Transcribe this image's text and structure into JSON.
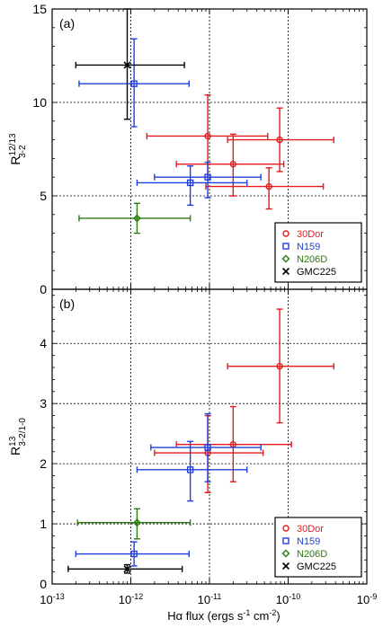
{
  "figure": {
    "xlabel": "Hα flux (ergs s",
    "xlabel_sup1": "-1",
    "xlabel_mid": " cm",
    "xlabel_sup2": "-2",
    "xlabel_end": ")"
  },
  "chart_data": [
    {
      "panel": "(a)",
      "type": "scatter",
      "xscale": "log",
      "xlim": [
        1e-13,
        1e-09
      ],
      "ylim": [
        0,
        15
      ],
      "grid": true,
      "ylabel": "R",
      "ylabel_sup": "12/13",
      "ylabel_sub": "3-2",
      "xticks": [
        "10",
        "10",
        "10",
        "10",
        "10"
      ],
      "xtick_exps": [
        "-13",
        "-12",
        "-11",
        "-10",
        "-9"
      ],
      "yticks": [
        0,
        5,
        10,
        15
      ],
      "legend_position": "bottom-right",
      "series": [
        {
          "name": "30Dor",
          "color": "#e41a1c",
          "marker": "circle",
          "points": [
            {
              "x": 9.5e-12,
              "y": 8.2,
              "xlo": 1.6e-12,
              "xhi": 5.5e-11,
              "ylo": 6.0,
              "yhi": 10.4
            },
            {
              "x": 7.8e-11,
              "y": 8.0,
              "xlo": 1.7e-11,
              "xhi": 3.8e-10,
              "ylo": 6.3,
              "yhi": 9.7
            },
            {
              "x": 2e-11,
              "y": 6.7,
              "xlo": 3.8e-12,
              "xhi": 8.8e-11,
              "ylo": 5.0,
              "yhi": 8.3
            },
            {
              "x": 5.7e-11,
              "y": 5.5,
              "xlo": 9e-12,
              "xhi": 2.8e-10,
              "ylo": 4.3,
              "yhi": 6.5
            }
          ]
        },
        {
          "name": "N159",
          "color": "#1f3fe0",
          "marker": "square",
          "points": [
            {
              "x": 1.1e-12,
              "y": 11.0,
              "xlo": 2.2e-13,
              "xhi": 5.5e-12,
              "ylo": 8.7,
              "yhi": 13.4
            },
            {
              "x": 5.7e-12,
              "y": 5.7,
              "xlo": 1.2e-12,
              "xhi": 3e-11,
              "ylo": 4.5,
              "yhi": 6.6
            },
            {
              "x": 9.5e-12,
              "y": 6.0,
              "xlo": 2e-12,
              "xhi": 4.5e-11,
              "ylo": 4.9,
              "yhi": 6.8
            }
          ]
        },
        {
          "name": "N206D",
          "color": "#2a7a0f",
          "marker": "diamond",
          "points": [
            {
              "x": 1.2e-12,
              "y": 3.8,
              "xlo": 2.2e-13,
              "xhi": 5.7e-12,
              "ylo": 3.0,
              "yhi": 4.6
            }
          ]
        },
        {
          "name": "GMC225",
          "color": "#000000",
          "marker": "cross",
          "points": [
            {
              "x": 9e-13,
              "y": 12.0,
              "xlo": 2e-13,
              "xhi": 4.8e-12,
              "ylo": 9.1,
              "yhi": 15.0
            }
          ]
        }
      ]
    },
    {
      "panel": "(b)",
      "type": "scatter",
      "xscale": "log",
      "xlim": [
        1e-13,
        1e-09
      ],
      "ylim": [
        0,
        4.9
      ],
      "grid": true,
      "ylabel": "R",
      "ylabel_sup": "13",
      "ylabel_sub": "3-2/1-0",
      "xticks": [
        "10",
        "10",
        "10",
        "10",
        "10"
      ],
      "xtick_exps": [
        "-13",
        "-12",
        "-11",
        "-10",
        "-9"
      ],
      "yticks": [
        0,
        1,
        2,
        3,
        4
      ],
      "legend_position": "bottom-right",
      "series": [
        {
          "name": "30Dor",
          "color": "#e41a1c",
          "marker": "circle",
          "points": [
            {
              "x": 7.8e-11,
              "y": 3.62,
              "xlo": 1.7e-11,
              "xhi": 3.8e-10,
              "ylo": 2.68,
              "yhi": 4.57
            },
            {
              "x": 2e-11,
              "y": 2.32,
              "xlo": 3.8e-12,
              "xhi": 1.1e-10,
              "ylo": 1.7,
              "yhi": 2.95
            },
            {
              "x": 9.5e-12,
              "y": 2.18,
              "xlo": 2e-12,
              "xhi": 4.8e-11,
              "ylo": 1.52,
              "yhi": 2.8
            }
          ]
        },
        {
          "name": "N159",
          "color": "#1f3fe0",
          "marker": "square",
          "points": [
            {
              "x": 9.5e-12,
              "y": 2.27,
              "xlo": 1.8e-12,
              "xhi": 4.5e-11,
              "ylo": 1.7,
              "yhi": 2.83
            },
            {
              "x": 5.7e-12,
              "y": 1.9,
              "xlo": 1.2e-12,
              "xhi": 3e-11,
              "ylo": 1.38,
              "yhi": 2.37
            },
            {
              "x": 1.1e-12,
              "y": 0.5,
              "xlo": 2e-13,
              "xhi": 5.5e-12,
              "ylo": 0.3,
              "yhi": 0.7
            }
          ]
        },
        {
          "name": "N206D",
          "color": "#2a7a0f",
          "marker": "diamond",
          "points": [
            {
              "x": 1.2e-12,
              "y": 1.02,
              "xlo": 2.1e-13,
              "xhi": 5.7e-12,
              "ylo": 0.75,
              "yhi": 1.25
            }
          ]
        },
        {
          "name": "GMC225",
          "color": "#000000",
          "marker": "cross",
          "points": [
            {
              "x": 9e-13,
              "y": 0.25,
              "xlo": 1.6e-13,
              "xhi": 4.5e-12,
              "ylo": 0.18,
              "yhi": 0.32
            }
          ]
        }
      ]
    }
  ]
}
